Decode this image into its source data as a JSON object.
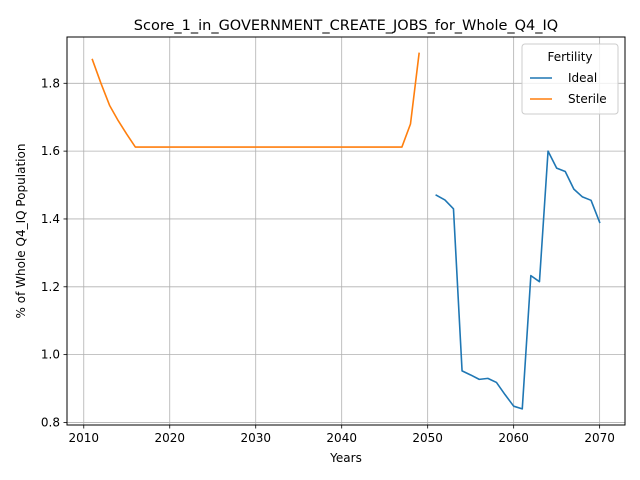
{
  "chart_data": {
    "type": "line",
    "title": "Score_1_in_GOVERNMENT_CREATE_JOBS_for_Whole_Q4_IQ",
    "xlabel": "Years",
    "ylabel": "% of Whole Q4_IQ Population",
    "xlim": [
      2008.05,
      2072.95
    ],
    "ylim": [
      0.7925,
      1.9365
    ],
    "xticks": [
      2010,
      2020,
      2030,
      2040,
      2050,
      2060,
      2070
    ],
    "xtick_labels": [
      "2010",
      "2020",
      "2030",
      "2040",
      "2050",
      "2060",
      "2070"
    ],
    "yticks": [
      0.8,
      1.0,
      1.2,
      1.4,
      1.6,
      1.8
    ],
    "ytick_labels": [
      "0.8",
      "1.0",
      "1.2",
      "1.4",
      "1.6",
      "1.8"
    ],
    "grid": true,
    "legend": {
      "title": "Fertility",
      "placement": "top-right"
    },
    "series": [
      {
        "name": "Ideal",
        "color": "#1f77b4",
        "x": [
          2051,
          2052,
          2053,
          2054,
          2055,
          2056,
          2057,
          2058,
          2059,
          2060,
          2061,
          2062,
          2063,
          2064,
          2065,
          2066,
          2067,
          2068,
          2069,
          2070
        ],
        "y": [
          1.47,
          1.456,
          1.43,
          0.952,
          0.94,
          0.927,
          0.93,
          0.918,
          0.882,
          0.848,
          0.84,
          1.233,
          1.215,
          1.6,
          1.55,
          1.54,
          1.488,
          1.465,
          1.455,
          1.39
        ]
      },
      {
        "name": "Sterile",
        "color": "#ff7f0e",
        "x": [
          2011,
          2012,
          2013,
          2014,
          2015,
          2016,
          2017,
          2018,
          2019,
          2020,
          2021,
          2022,
          2023,
          2024,
          2025,
          2026,
          2027,
          2028,
          2029,
          2030,
          2031,
          2032,
          2033,
          2034,
          2035,
          2036,
          2037,
          2038,
          2039,
          2040,
          2041,
          2042,
          2043,
          2044,
          2045,
          2046,
          2047,
          2048,
          2049
        ],
        "y": [
          1.87,
          1.8,
          1.735,
          1.69,
          1.65,
          1.612,
          1.612,
          1.612,
          1.612,
          1.612,
          1.612,
          1.612,
          1.612,
          1.612,
          1.612,
          1.612,
          1.612,
          1.612,
          1.612,
          1.612,
          1.612,
          1.612,
          1.612,
          1.612,
          1.612,
          1.612,
          1.612,
          1.612,
          1.612,
          1.612,
          1.612,
          1.612,
          1.612,
          1.612,
          1.612,
          1.612,
          1.612,
          1.68,
          1.888
        ]
      }
    ]
  }
}
